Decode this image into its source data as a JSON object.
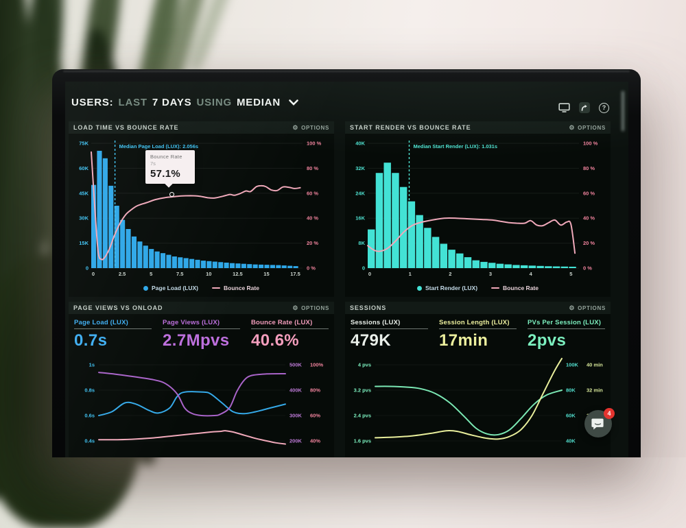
{
  "header": {
    "users_label": "USERS:",
    "range_muted": "LAST",
    "range_strong": "7 DAYS",
    "using_muted": "USING",
    "metric_strong": "MEDIAN"
  },
  "panel_load_time": {
    "title": "LOAD TIME VS BOUNCE RATE",
    "options": "OPTIONS"
  },
  "panel_start_render": {
    "title": "START RENDER VS BOUNCE RATE",
    "options": "OPTIONS"
  },
  "panel_page_views": {
    "title": "PAGE VIEWS VS ONLOAD",
    "options": "OPTIONS",
    "metrics": [
      {
        "label": "Page Load (LUX)",
        "value": "0.7s",
        "color": "#3eaef2"
      },
      {
        "label": "Page Views (LUX)",
        "value": "2.7Mpvs",
        "color": "#bd6fdd"
      },
      {
        "label": "Bounce Rate (LUX)",
        "value": "40.6%",
        "color": "#f49ebd"
      }
    ]
  },
  "panel_sessions": {
    "title": "SESSIONS",
    "options": "OPTIONS",
    "metrics": [
      {
        "label": "Sessions (LUX)",
        "value": "479K",
        "color": "#e9efe9"
      },
      {
        "label": "Session Length (LUX)",
        "value": "17min",
        "color": "#edf09e"
      },
      {
        "label": "PVs Per Session (LUX)",
        "value": "2pvs",
        "color": "#7cf0bf"
      }
    ]
  },
  "tooltip": {
    "series": "Bounce Rate",
    "x": "7s",
    "value": "57.1%"
  },
  "messenger": {
    "badge": "4"
  },
  "chart_data": [
    {
      "type": "bar",
      "title": "LOAD TIME VS BOUNCE RATE",
      "xlim": [
        0,
        18.3
      ],
      "x_ticks": [
        "0",
        "2.5",
        "5",
        "7.5",
        "10",
        "12.5",
        "15",
        "17.5"
      ],
      "x_tick_values": [
        0,
        2.5,
        5,
        7.5,
        10,
        12.5,
        15,
        17.5
      ],
      "left_axis": {
        "ticks": [
          "0",
          "15K",
          "30K",
          "45K",
          "60K",
          "75K"
        ],
        "values": [
          0,
          15000,
          30000,
          45000,
          60000,
          75000
        ],
        "color": "#3fc4f5"
      },
      "right_axis": {
        "ticks": [
          "0 %",
          "20 %",
          "40 %",
          "60 %",
          "80 %",
          "100 %"
        ],
        "values": [
          0,
          20,
          40,
          60,
          80,
          100
        ],
        "color": "#f2849e"
      },
      "bars": {
        "name": "Page Load (LUX)",
        "color": "#2ea7e8",
        "x_start": 0,
        "x_step": 0.5,
        "values_k": [
          50,
          70.5,
          66,
          49.5,
          37.5,
          29,
          23.5,
          19,
          16,
          13.5,
          11.5,
          10,
          9,
          8,
          7,
          6.5,
          6,
          5.5,
          5,
          4.5,
          4.2,
          3.9,
          3.6,
          3.3,
          3.0,
          2.8,
          2.6,
          2.4,
          2.2,
          2.1,
          2.0,
          1.9,
          1.8,
          1.6,
          1.4,
          1.2
        ]
      },
      "line": {
        "name": "Bounce Rate",
        "color": "#f0a9ba",
        "points": [
          [
            0,
            93
          ],
          [
            0.3,
            50
          ],
          [
            0.6,
            13
          ],
          [
            0.9,
            7
          ],
          [
            1.2,
            9
          ],
          [
            1.6,
            16
          ],
          [
            2.0,
            26
          ],
          [
            2.5,
            36
          ],
          [
            3.0,
            43
          ],
          [
            3.5,
            47
          ],
          [
            4.0,
            50
          ],
          [
            4.8,
            52.5
          ],
          [
            5.6,
            55
          ],
          [
            6.4,
            56.5
          ],
          [
            7.0,
            57.1
          ],
          [
            7.8,
            57.8
          ],
          [
            8.6,
            58
          ],
          [
            9.4,
            57.6
          ],
          [
            10.1,
            56.4
          ],
          [
            10.7,
            56.2
          ],
          [
            11.4,
            57.6
          ],
          [
            12.0,
            59
          ],
          [
            12.4,
            58.4
          ],
          [
            12.9,
            59.8
          ],
          [
            13.4,
            61.8
          ],
          [
            13.8,
            61.4
          ],
          [
            14.3,
            65.2
          ],
          [
            14.7,
            66
          ],
          [
            15.1,
            65.4
          ],
          [
            15.6,
            62.6
          ],
          [
            16.1,
            62.2
          ],
          [
            16.6,
            65
          ],
          [
            17.1,
            64.8
          ],
          [
            17.6,
            63.8
          ],
          [
            18.1,
            64.4
          ]
        ]
      },
      "median": {
        "x": 2.056,
        "label": "Median Page Load (LUX): 2.056s",
        "color": "#3fc4f5"
      },
      "legend": [
        "Page Load (LUX)",
        "Bounce Rate"
      ]
    },
    {
      "type": "bar",
      "title": "START RENDER VS BOUNCE RATE",
      "xlim": [
        0,
        5.25
      ],
      "x_ticks": [
        "0",
        "1",
        "2",
        "3",
        "4",
        "5"
      ],
      "x_tick_values": [
        0,
        1,
        2,
        3,
        4,
        5
      ],
      "left_axis": {
        "ticks": [
          "0",
          "8K",
          "16K",
          "24K",
          "32K",
          "40K"
        ],
        "values": [
          0,
          8000,
          16000,
          24000,
          32000,
          40000
        ],
        "color": "#4fe3d2"
      },
      "right_axis": {
        "ticks": [
          "0 %",
          "20 %",
          "40 %",
          "60 %",
          "80 %",
          "100 %"
        ],
        "values": [
          0,
          20,
          40,
          60,
          80,
          100
        ],
        "color": "#f2849e"
      },
      "bars": {
        "name": "Start Render (LUX)",
        "color": "#43e2d5",
        "x_start": 0,
        "x_step": 0.2,
        "values_k": [
          12.4,
          30.5,
          33.8,
          30.5,
          26,
          21.4,
          17,
          12.9,
          10,
          7.8,
          5.9,
          4.7,
          3.5,
          2.5,
          2.0,
          1.7,
          1.4,
          1.2,
          1.0,
          0.9,
          0.8,
          0.7,
          0.6,
          0.55,
          0.5,
          0.45
        ]
      },
      "line": {
        "name": "Bounce Rate",
        "color": "#f0a9ba",
        "points": [
          [
            0,
            18
          ],
          [
            0.15,
            14.5
          ],
          [
            0.3,
            13.5
          ],
          [
            0.5,
            16
          ],
          [
            0.7,
            22
          ],
          [
            0.9,
            29
          ],
          [
            1.1,
            34
          ],
          [
            1.3,
            36.5
          ],
          [
            1.6,
            38.5
          ],
          [
            1.9,
            40
          ],
          [
            2.2,
            40
          ],
          [
            2.5,
            39.5
          ],
          [
            2.8,
            39
          ],
          [
            3.1,
            38.5
          ],
          [
            3.3,
            37.5
          ],
          [
            3.5,
            36.5
          ],
          [
            3.7,
            36
          ],
          [
            3.9,
            36
          ],
          [
            4.05,
            38
          ],
          [
            4.2,
            34.5
          ],
          [
            4.35,
            34
          ],
          [
            4.5,
            36.5
          ],
          [
            4.65,
            38.5
          ],
          [
            4.8,
            34.5
          ],
          [
            4.95,
            37
          ],
          [
            5.05,
            35
          ],
          [
            5.15,
            12
          ]
        ]
      },
      "median": {
        "x": 1.031,
        "label": "Median Start Render (LUX): 1.031s",
        "color": "#4fe3d2"
      },
      "legend": [
        "Start Render (LUX)",
        "Bounce Rate"
      ]
    },
    {
      "type": "line",
      "title": "PAGE VIEWS VS ONLOAD",
      "left_axis": {
        "ticks": [
          "0.4s",
          "0.6s",
          "0.8s",
          "1s"
        ],
        "values": [
          0.4,
          0.6,
          0.8,
          1.0
        ],
        "color": "#3fc4f5"
      },
      "right_axis_1": {
        "ticks": [
          "200K",
          "300K",
          "400K",
          "500K"
        ],
        "values": [
          200,
          300,
          400,
          500
        ],
        "color": "#bd7ad6"
      },
      "right_axis_2": {
        "ticks": [
          "40%",
          "60%",
          "80%",
          "100%"
        ],
        "values": [
          40,
          60,
          80,
          100
        ],
        "color": "#f2849e"
      },
      "series": [
        {
          "name": "Page Load (LUX)",
          "color": "#35a9e8",
          "axis": "left",
          "x": [
            0,
            0.07,
            0.14,
            0.2,
            0.27,
            0.32,
            0.38,
            0.42,
            0.46,
            0.56,
            0.6,
            0.66,
            0.72,
            0.78,
            0.84,
            0.92,
            1
          ],
          "values": [
            0.6,
            0.63,
            0.7,
            0.69,
            0.64,
            0.62,
            0.66,
            0.75,
            0.785,
            0.785,
            0.77,
            0.7,
            0.63,
            0.615,
            0.63,
            0.66,
            0.69
          ]
        },
        {
          "name": "Page Views (LUX)",
          "color": "#a964c9",
          "axis": "right1",
          "x": [
            0,
            0.1,
            0.2,
            0.3,
            0.36,
            0.42,
            0.46,
            0.5,
            0.55,
            0.62,
            0.65,
            0.7,
            0.74,
            0.78,
            0.82,
            0.9,
            1
          ],
          "values": [
            470,
            462,
            452,
            440,
            425,
            385,
            330,
            308,
            300,
            300,
            305,
            330,
            395,
            440,
            458,
            464,
            465
          ]
        },
        {
          "name": "Bounce Rate (LUX)",
          "color": "#f0a9ba",
          "axis": "right2",
          "x": [
            0,
            0.1,
            0.2,
            0.3,
            0.4,
            0.5,
            0.6,
            0.65,
            0.68,
            0.72,
            0.78,
            0.84,
            0.9,
            0.95,
            1
          ],
          "values": [
            41,
            41,
            41.5,
            42.5,
            44,
            45.5,
            47,
            47.5,
            48,
            47,
            44.5,
            42,
            40,
            38.5,
            37.5
          ]
        }
      ]
    },
    {
      "type": "line",
      "title": "SESSIONS",
      "left_axis": {
        "ticks": [
          "1.6 pvs",
          "2.4 pvs",
          "3.2 pvs",
          "4 pvs"
        ],
        "values": [
          1.6,
          2.4,
          3.2,
          4.0
        ],
        "color": "#7cf0bf"
      },
      "right_axis_1": {
        "ticks": [
          "40K",
          "60K",
          "80K",
          "100K"
        ],
        "values": [
          40,
          60,
          80,
          100
        ],
        "color": "#52e0cf"
      },
      "right_axis_2": {
        "ticks": [
          "",
          "24 min",
          "32 min",
          "40 min"
        ],
        "values": [
          16,
          24,
          32,
          40
        ],
        "color": "#d8e89a"
      },
      "series": [
        {
          "name": "PVs Per Session (LUX)",
          "color": "#7be8b4",
          "axis": "left",
          "x": [
            0,
            0.08,
            0.16,
            0.24,
            0.32,
            0.4,
            0.48,
            0.54,
            0.6,
            0.66,
            0.72,
            0.78,
            0.85,
            0.92,
            1
          ],
          "values": [
            3.32,
            3.32,
            3.3,
            3.25,
            3.1,
            2.8,
            2.35,
            2.0,
            1.82,
            1.8,
            1.95,
            2.3,
            2.75,
            3.05,
            3.2
          ]
        },
        {
          "name": "Session Length (LUX)",
          "color": "#e9ef9c",
          "axis": "right2",
          "x": [
            0,
            0.1,
            0.2,
            0.3,
            0.38,
            0.44,
            0.52,
            0.6,
            0.66,
            0.72,
            0.78,
            0.84,
            0.9,
            0.96,
            1
          ],
          "values": [
            17,
            17.2,
            17.6,
            18.4,
            19.2,
            19.0,
            17.8,
            16.8,
            16.6,
            17.4,
            19.5,
            24,
            31,
            38,
            42
          ]
        }
      ]
    }
  ]
}
